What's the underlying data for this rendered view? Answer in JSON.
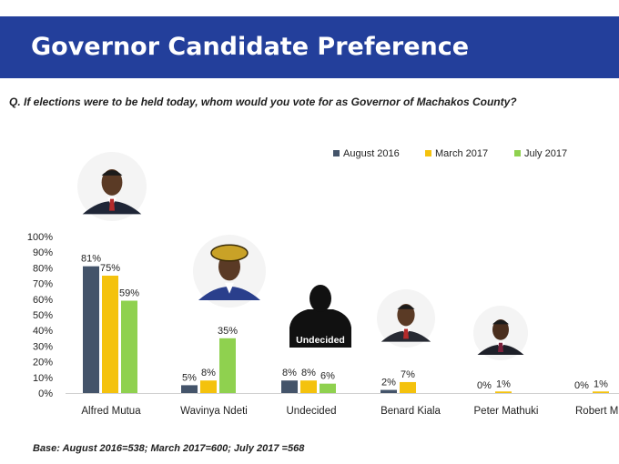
{
  "header": {
    "title": "Governor Candidate Preference"
  },
  "question": "Q. If elections were to be held today, whom would you vote for as Governor of Machakos County?",
  "footnote": "Base: August 2016=538; March 2017=600; July 2017 =568",
  "colors": {
    "header_bg": "#233f9b",
    "august_2016": "#44546a",
    "march_2017": "#f4c20d",
    "july_2017": "#8fd14f"
  },
  "photo_icons": [
    {
      "name": "alfred-mutua-photo-icon"
    },
    {
      "name": "wavinya-ndeti-photo-icon"
    },
    {
      "name": "undecided-silhouette-icon",
      "label": "Undecided"
    },
    {
      "name": "benard-kiala-photo-icon"
    },
    {
      "name": "peter-mathuki-photo-icon"
    }
  ],
  "chart_data": {
    "type": "bar",
    "categories": [
      "Alfred Mutua",
      "Wavinya Ndeti",
      "Undecided",
      "Benard Kiala",
      "Peter Mathuki",
      "Robert M"
    ],
    "series": [
      {
        "name": "August 2016",
        "values": [
          81,
          5,
          8,
          2,
          0,
          0
        ],
        "labels": [
          "81%",
          "5%",
          "8%",
          "2%",
          "0%",
          "0%"
        ]
      },
      {
        "name": "March 2017",
        "values": [
          75,
          8,
          8,
          7,
          1,
          1
        ],
        "labels": [
          "75%",
          "8%",
          "8%",
          "7%",
          "1%",
          "1%"
        ]
      },
      {
        "name": "July 2017",
        "values": [
          59,
          35,
          6,
          null,
          null,
          null
        ],
        "labels": [
          "59%",
          "35%",
          "6%",
          null,
          null,
          null
        ]
      }
    ],
    "ylim": [
      0,
      100
    ],
    "yticks": [
      "0%",
      "10%",
      "20%",
      "30%",
      "40%",
      "50%",
      "60%",
      "70%",
      "80%",
      "90%",
      "100%"
    ],
    "legend": "top-right",
    "grid": false
  }
}
